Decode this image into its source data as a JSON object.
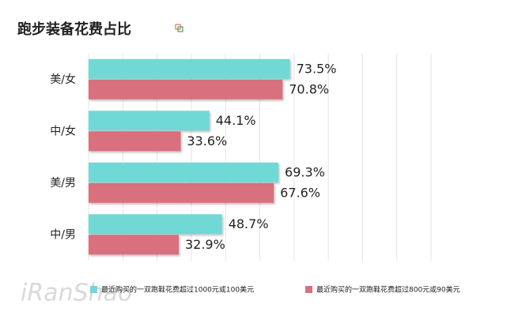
{
  "chart_data": {
    "type": "hbar",
    "title": "跑步装备花费占比",
    "categories": [
      "美/女",
      "中/女",
      "美/男",
      "中/男"
    ],
    "series": [
      {
        "name": "最近购买的一双跑鞋花费超过1000元或100美元",
        "color": "#6fd8d5",
        "values": [
          73.5,
          44.1,
          69.3,
          48.7
        ],
        "value_labels": [
          "73.5%",
          "44.1%",
          "69.3%",
          "48.7%"
        ]
      },
      {
        "name": "最近购买的一双跑鞋花费超过800元或90美元",
        "color": "#d8707d",
        "values": [
          70.8,
          33.6,
          67.6,
          32.9
        ],
        "value_labels": [
          "70.8%",
          "33.6%",
          "67.6%",
          "32.9%"
        ]
      }
    ],
    "xlim": [
      0,
      125
    ],
    "grid": true,
    "watermark": "iRanShao"
  }
}
